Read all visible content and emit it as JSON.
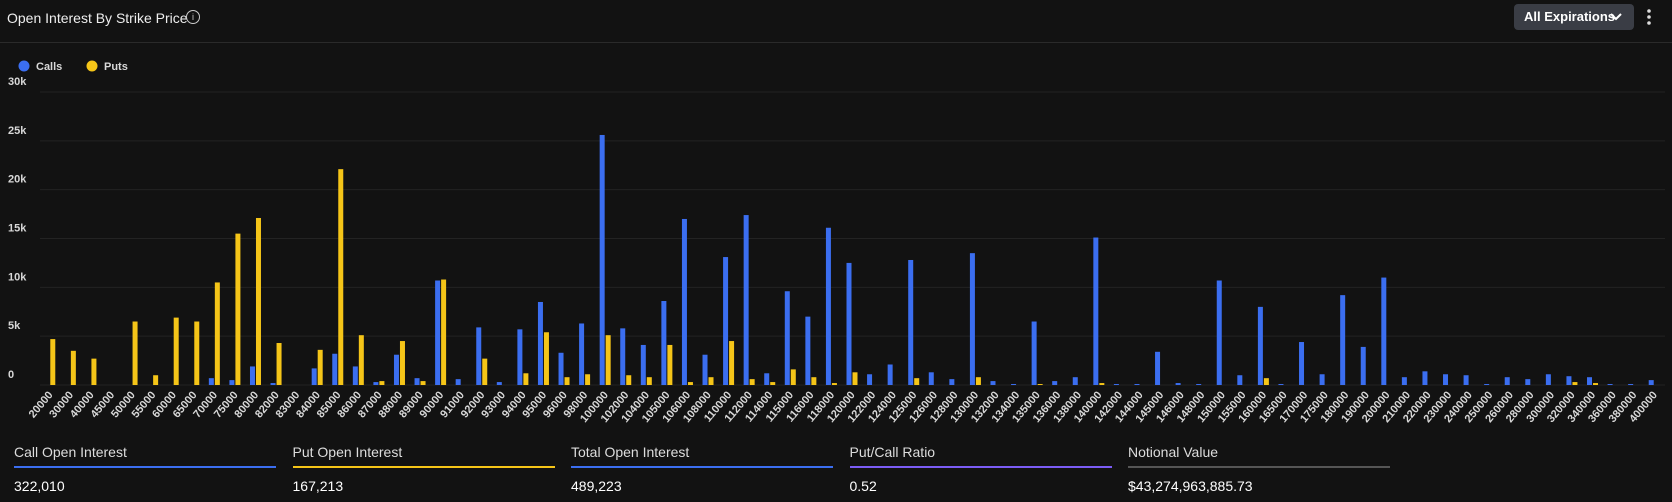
{
  "header": {
    "title": "Open Interest By Strike Price",
    "filter": "All Expirations"
  },
  "chart_data": {
    "type": "bar",
    "grid": true,
    "legend": "top-left",
    "categories": [
      "20000",
      "30000",
      "40000",
      "45000",
      "50000",
      "55000",
      "60000",
      "65000",
      "70000",
      "75000",
      "80000",
      "82000",
      "83000",
      "84000",
      "85000",
      "86000",
      "87000",
      "88000",
      "89000",
      "90000",
      "91000",
      "92000",
      "93000",
      "94000",
      "95000",
      "96000",
      "98000",
      "100000",
      "102000",
      "104000",
      "105000",
      "106000",
      "108000",
      "110000",
      "112000",
      "114000",
      "115000",
      "116000",
      "118000",
      "120000",
      "122000",
      "124000",
      "125000",
      "126000",
      "128000",
      "130000",
      "132000",
      "134000",
      "135000",
      "136000",
      "138000",
      "140000",
      "142000",
      "144000",
      "145000",
      "146000",
      "148000",
      "150000",
      "155000",
      "160000",
      "165000",
      "170000",
      "175000",
      "180000",
      "190000",
      "200000",
      "210000",
      "220000",
      "230000",
      "240000",
      "250000",
      "260000",
      "280000",
      "300000",
      "320000",
      "340000",
      "360000",
      "380000",
      "400000"
    ],
    "series": [
      {
        "name": "Calls",
        "color": "#3b6ef0",
        "values": [
          0,
          0,
          0,
          0,
          0,
          0,
          0,
          0,
          700,
          500,
          1900,
          200,
          0,
          1700,
          3200,
          1900,
          300,
          3100,
          700,
          10700,
          600,
          5900,
          300,
          5700,
          8500,
          3300,
          6300,
          25600,
          5800,
          4100,
          8600,
          17000,
          3100,
          13100,
          17400,
          1200,
          9600,
          7000,
          16100,
          12500,
          1100,
          2100,
          12800,
          1300,
          600,
          13500,
          400,
          100,
          6500,
          400,
          800,
          15100,
          100,
          100,
          3400,
          200,
          100,
          10700,
          1000,
          8000,
          100,
          4400,
          1100,
          9200,
          3900,
          11000,
          800,
          1400,
          1100,
          1000,
          100,
          800,
          600,
          1100,
          900,
          800,
          100,
          100,
          500
        ]
      },
      {
        "name": "Puts",
        "color": "#f5c518",
        "values": [
          4700,
          3500,
          2700,
          0,
          6500,
          1000,
          6900,
          6500,
          10500,
          15500,
          17100,
          4300,
          0,
          3600,
          22100,
          5100,
          400,
          4500,
          400,
          10800,
          0,
          2700,
          0,
          1200,
          5400,
          800,
          1100,
          5100,
          1000,
          800,
          4100,
          300,
          800,
          4500,
          600,
          300,
          1600,
          800,
          200,
          1300,
          0,
          0,
          700,
          0,
          0,
          800,
          0,
          0,
          100,
          0,
          0,
          200,
          0,
          0,
          0,
          0,
          0,
          0,
          0,
          700,
          0,
          0,
          0,
          0,
          0,
          0,
          0,
          0,
          0,
          0,
          0,
          0,
          0,
          0,
          300,
          200,
          0,
          0,
          0
        ]
      }
    ],
    "ylim": [
      0,
      30000
    ],
    "yticks": [
      0,
      {
        "value": 5000,
        "label": "5k"
      },
      {
        "value": 10000,
        "label": "10k"
      },
      {
        "value": 15000,
        "label": "15k"
      },
      {
        "value": 20000,
        "label": "20k"
      },
      {
        "value": 25000,
        "label": "25k"
      },
      {
        "value": 30000,
        "label": "30k"
      }
    ]
  },
  "stats": [
    {
      "label": "Call Open Interest",
      "value": "322,010",
      "color": "#3b6ef0"
    },
    {
      "label": "Put Open Interest",
      "value": "167,213",
      "color": "#f5c518"
    },
    {
      "label": "Total Open Interest",
      "value": "489,223",
      "color": "#3b6ef0"
    },
    {
      "label": "Put/Call Ratio",
      "value": "0.52",
      "color": "#7b5cf5"
    },
    {
      "label": "Notional Value",
      "value": "$43,274,963,885.73",
      "color": "#555555"
    }
  ]
}
